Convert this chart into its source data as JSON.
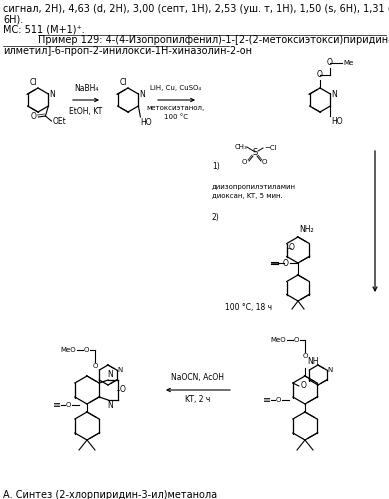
{
  "bg_color": "#ffffff",
  "line1": "сигнал, 2H), 4,63 (d, 2H), 3,00 (септ, 1H), 2,53 (уш. т, 1H), 1,50 (s, 6H), 1,31 (d,",
  "line2": "6H).",
  "line3": "МС: 511 (М+1)⁺.",
  "example_line1": "Пример 129: 4-(4-Изопропилфенил)-1-[2-(2-метоксиэтокси)пиридин-3-",
  "example_line2": "илметил]-6-проп-2-инилокси-1H-хиназолин-2-он",
  "reagent1a": "NaBH₄",
  "reagent1b": "EtOH, KT",
  "reagent2a": "LiH, Cu, CuSO₄",
  "reagent2b": "метоксиэтанол,",
  "reagent2c": "100 °C",
  "reagent3a": "1)",
  "reagent3b": "диизопропилэтиламин",
  "reagent3c": "диоксан, KT, 5 мин.",
  "reagent3d": "2)",
  "reagent3e": "100 °C, 18 ч",
  "reagent4a": "NaOCN, AcOH",
  "reagent4b": "KT, 2 ч",
  "bottom": "А. Синтез (2-хлорпиридин-3-ил)метанола",
  "fs": 7.0,
  "fs_small": 5.5
}
